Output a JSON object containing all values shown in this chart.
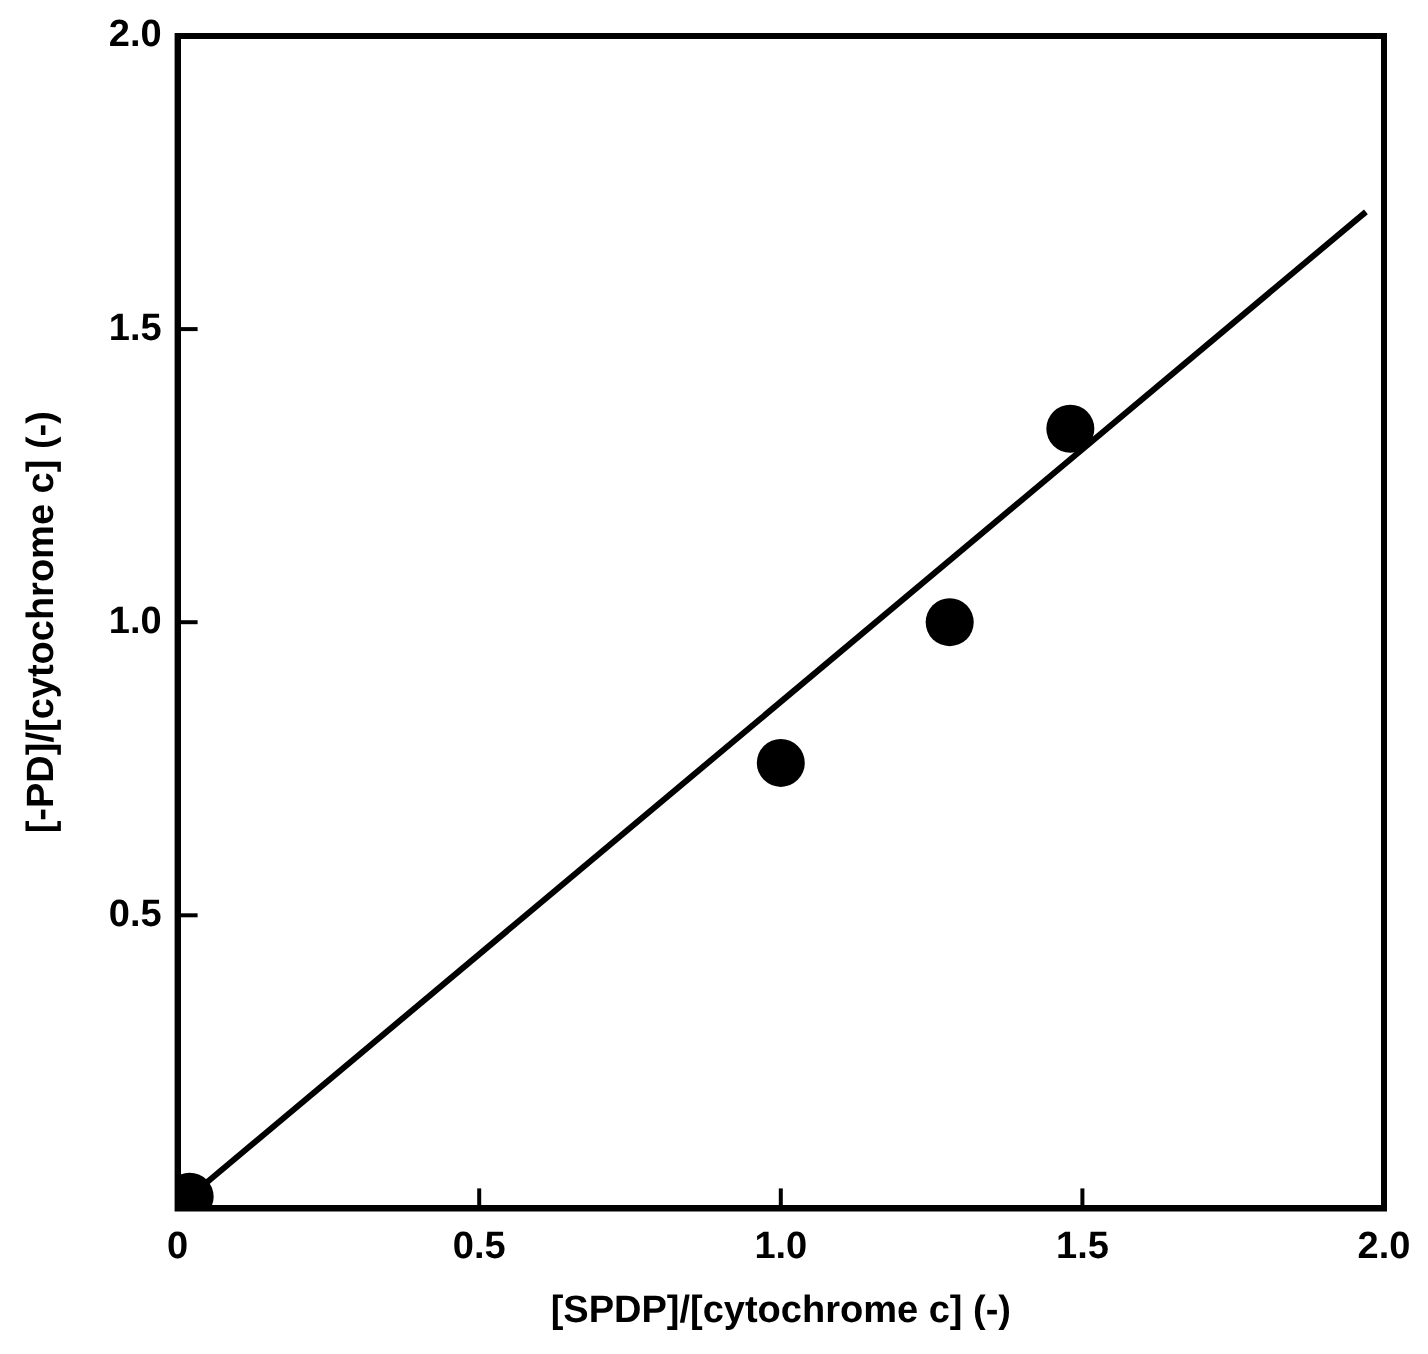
{
  "chart_data": {
    "type": "scatter",
    "xlabel": "[SPDP]/[cytochrome c] (-)",
    "ylabel": "[-PD]/[cytochrome c] (-)",
    "xlim": [
      0,
      2
    ],
    "ylim": [
      0,
      2
    ],
    "xticks": [
      0,
      {
        "value": 0.5,
        "label": "0.5"
      },
      {
        "value": 1,
        "label": "1.0"
      },
      {
        "value": 1.5,
        "label": "1.5"
      },
      {
        "value": 2,
        "label": "2.0"
      }
    ],
    "yticks": [
      {
        "value": 0.5,
        "label": "0.5"
      },
      {
        "value": 1,
        "label": "1.0"
      },
      {
        "value": 1.5,
        "label": "1.5"
      },
      {
        "value": 2,
        "label": "2.0"
      }
    ],
    "grid": false,
    "legend": false,
    "marker": "circle",
    "series": [
      {
        "color": "#000000",
        "x": [
          0.02,
          1.0,
          1.28,
          1.48
        ],
        "values": [
          0.02,
          0.76,
          1.0,
          1.33
        ]
      },
      {
        "type": "line",
        "color": "#000000",
        "marker": "none",
        "x": [
          0.02,
          1.97
        ],
        "values": [
          0.02,
          1.7
        ]
      }
    ]
  }
}
